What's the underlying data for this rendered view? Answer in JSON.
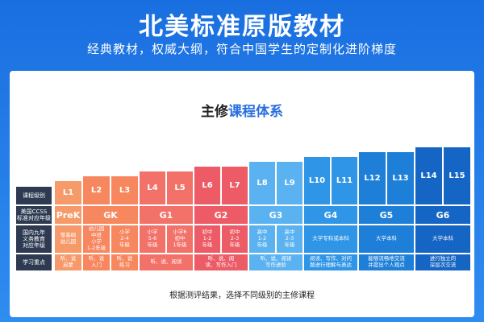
{
  "header": {
    "title": "北美标准原版教材",
    "subtitle": "经典教材，权威大纲，符合中国学生的定制化进阶梯度"
  },
  "card": {
    "title_part1": "主修",
    "title_part2": "课程体系",
    "footer": "根据测评结果，选择不同级别的主修课程"
  },
  "row_labels": [
    "课程级别",
    "美国CCSS\n标准对应年级",
    "国内九年\n义务教育\n对应年级",
    "学习重点"
  ],
  "levels": [
    "L1",
    "L2",
    "L3",
    "L4",
    "L5",
    "L6",
    "L7",
    "L8",
    "L9",
    "L10",
    "L11",
    "L12",
    "L13",
    "L14",
    "L15"
  ],
  "grade_bands": [
    "PreK",
    "GK",
    "G1",
    "G2",
    "G3",
    "G4",
    "G5",
    "G6"
  ],
  "domestic_grades": [
    "零基础\n幼儿园",
    "幼儿园\n中班\n小学\n1-2年级",
    "小学\n2-4\n年级",
    "小学\n5-6\n年级",
    "小学6\n初中\n1年级",
    "初中\n1-2\n年级",
    "初中\n2-3\n年级",
    "高中\n1-2\n年级",
    "高中\n2-3\n年级",
    "大学专科或本科",
    "大学本科",
    "大学本科"
  ],
  "focus": [
    "听、说\n启蒙",
    "听、说\n入门",
    "听、说\n练习",
    "听、说、阅读",
    "听、说、阅\n读、写作入门",
    "听、说、阅读\n写作进阶",
    "阅读、写作、对问\n题进行理解与表达",
    "能够流畅地交流\n并提出个人观点",
    "进行独立的\n深层次交流"
  ],
  "colors": {
    "header_bg": "#1a6fe0",
    "row_label_bg": "#2d3a52",
    "accent": "#2a6fe0"
  }
}
